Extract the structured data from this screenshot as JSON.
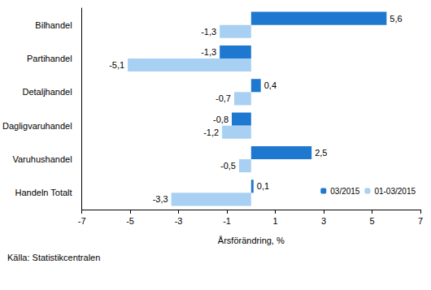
{
  "chart_data": {
    "type": "bar",
    "orientation": "horizontal",
    "categories": [
      "Bilhandel",
      "Partihandel",
      "Detaljhandel",
      "Dagligvaruhandel",
      "Varuhushandel",
      "Handeln Totalt"
    ],
    "series": [
      {
        "name": "03/2015",
        "color": "#1f78d0",
        "values": [
          5.6,
          -1.3,
          0.4,
          -0.8,
          2.5,
          0.1
        ],
        "value_labels": [
          "5,6",
          "-1,3",
          "0,4",
          "-0,8",
          "2,5",
          "0,1"
        ]
      },
      {
        "name": "01-03/2015",
        "color": "#a8d0f2",
        "values": [
          -1.3,
          -5.1,
          -0.7,
          -1.2,
          -0.5,
          -3.3
        ],
        "value_labels": [
          "-1,3",
          "-5,1",
          "-0,7",
          "-1,2",
          "-0,5",
          "-3,3"
        ]
      }
    ],
    "xlabel": "Årsförändring, %",
    "source": "Källa: Statistikcentralen",
    "xlim": [
      -7,
      7
    ],
    "xticks": [
      -7,
      -5,
      -3,
      -1,
      1,
      3,
      5,
      7
    ],
    "data_labels": true,
    "legend": "lower right",
    "grid": false
  }
}
